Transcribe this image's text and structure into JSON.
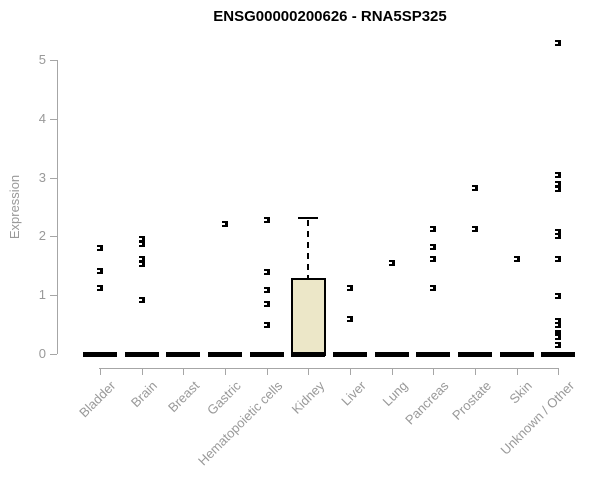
{
  "title": "ENSG00000200626 - RNA5SP325",
  "chart_data": {
    "type": "boxplot",
    "title": "ENSG00000200626 - RNA5SP325",
    "xlabel": "",
    "ylabel": "Expression",
    "ylim": [
      0,
      5
    ],
    "yticks": [
      "0",
      "1",
      "2",
      "3",
      "4",
      "5"
    ],
    "grid": false,
    "legend": "none",
    "categories": [
      "Bladder",
      "Brain",
      "Breast",
      "Gastric",
      "Hematopoietic cells",
      "Kidney",
      "Liver",
      "Lung",
      "Pancreas",
      "Prostate",
      "Skin",
      "Unknown / Other"
    ],
    "series": [
      {
        "category": "Bladder",
        "median": 0,
        "points": [
          1.8,
          1.42,
          1.13
        ]
      },
      {
        "category": "Brain",
        "median": 0,
        "points": [
          1.96,
          1.87,
          1.62,
          1.53,
          0.92
        ]
      },
      {
        "category": "Breast",
        "median": 0,
        "points": []
      },
      {
        "category": "Gastric",
        "median": 0,
        "points": [
          2.21
        ]
      },
      {
        "category": "Hematopoietic cells",
        "median": 0,
        "points": [
          2.28,
          1.39,
          1.09,
          0.85,
          0.49
        ]
      },
      {
        "category": "Kidney",
        "median": 0,
        "box": {
          "q1": 0,
          "q3": 1.3,
          "whisker_high": 2.31
        },
        "points": []
      },
      {
        "category": "Liver",
        "median": 0,
        "points": [
          1.13,
          0.6
        ]
      },
      {
        "category": "Lung",
        "median": 0,
        "points": [
          1.54
        ]
      },
      {
        "category": "Pancreas",
        "median": 0,
        "points": [
          2.13,
          1.82,
          1.62,
          1.12
        ]
      },
      {
        "category": "Prostate",
        "median": 0,
        "points": [
          2.83,
          2.13
        ]
      },
      {
        "category": "Skin",
        "median": 0,
        "points": [
          1.62
        ]
      },
      {
        "category": "Unknown / Other",
        "median": 0,
        "points": [
          5.29,
          3.04,
          2.89,
          2.81,
          2.07,
          2.01,
          1.62,
          0.99,
          0.56,
          0.49,
          0.36,
          0.32,
          0.29,
          0.15
        ]
      }
    ],
    "colors": {
      "box_fill": "#ece7c8",
      "box_border": "#000000",
      "median": "#000000",
      "point": "#000000",
      "axis": "#a6a6a6",
      "tick_label": "#999999",
      "title": "#000000",
      "background": "#ffffff"
    }
  }
}
